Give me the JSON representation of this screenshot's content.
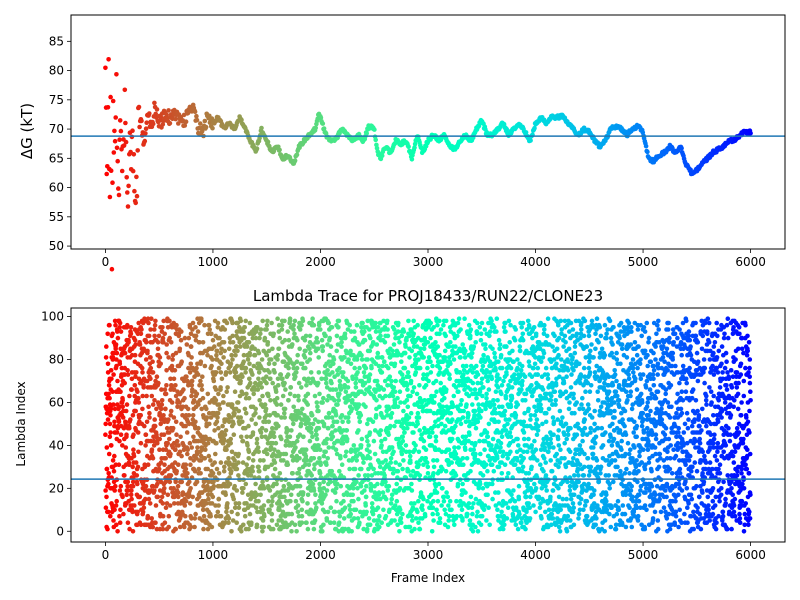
{
  "chart_data": [
    {
      "type": "scatter",
      "title": "",
      "xlabel": "",
      "ylabel": "ΔG (kT)",
      "xlim": [
        -320,
        6320
      ],
      "ylim": [
        49.5,
        89.5
      ],
      "xticks": [
        "0",
        "1000",
        "2000",
        "3000",
        "4000",
        "5000",
        "6000"
      ],
      "yticks": [
        "50",
        "55",
        "60",
        "65",
        "70",
        "75",
        "80",
        "85"
      ],
      "grid": false,
      "hline": 68.8,
      "hline_color": "#1f77b4",
      "colormap": "rainbow",
      "color_range": [
        0,
        6000
      ],
      "colormap_reversed": true,
      "trace": [
        [
          0,
          80
        ],
        [
          10,
          60
        ],
        [
          20,
          64
        ],
        [
          30,
          83
        ],
        [
          40,
          56
        ],
        [
          50,
          78
        ],
        [
          60,
          51
        ],
        [
          70,
          68
        ],
        [
          80,
          72
        ],
        [
          90,
          66
        ],
        [
          100,
          75
        ],
        [
          120,
          62
        ],
        [
          140,
          70
        ],
        [
          160,
          60
        ],
        [
          180,
          76
        ],
        [
          200,
          66
        ],
        [
          220,
          58
        ],
        [
          240,
          69
        ],
        [
          260,
          63
        ],
        [
          280,
          54
        ],
        [
          300,
          67
        ],
        [
          330,
          71
        ],
        [
          360,
          68
        ],
        [
          400,
          73
        ],
        [
          430,
          70
        ],
        [
          460,
          74
        ],
        [
          500,
          71
        ],
        [
          550,
          72
        ],
        [
          600,
          72
        ],
        [
          650,
          73
        ],
        [
          700,
          71
        ],
        [
          750,
          72
        ],
        [
          800,
          74
        ],
        [
          850,
          71
        ],
        [
          900,
          69
        ],
        [
          950,
          72
        ],
        [
          1000,
          71
        ],
        [
          1050,
          72
        ],
        [
          1100,
          70
        ],
        [
          1150,
          71
        ],
        [
          1200,
          70
        ],
        [
          1250,
          72
        ],
        [
          1300,
          70
        ],
        [
          1350,
          68
        ],
        [
          1400,
          66
        ],
        [
          1450,
          70
        ],
        [
          1500,
          68
        ],
        [
          1550,
          66
        ],
        [
          1600,
          67
        ],
        [
          1650,
          65
        ],
        [
          1700,
          65.5
        ],
        [
          1750,
          64
        ],
        [
          1800,
          67
        ],
        [
          1850,
          68
        ],
        [
          1900,
          69
        ],
        [
          1950,
          70
        ],
        [
          1980,
          72.5
        ],
        [
          2000,
          72
        ],
        [
          2050,
          69
        ],
        [
          2100,
          68
        ],
        [
          2150,
          68.5
        ],
        [
          2200,
          70
        ],
        [
          2250,
          69
        ],
        [
          2300,
          68
        ],
        [
          2350,
          69
        ],
        [
          2400,
          68
        ],
        [
          2450,
          70.5
        ],
        [
          2500,
          70
        ],
        [
          2530,
          66
        ],
        [
          2560,
          65
        ],
        [
          2600,
          67
        ],
        [
          2650,
          66
        ],
        [
          2700,
          68
        ],
        [
          2750,
          67.5
        ],
        [
          2800,
          68
        ],
        [
          2850,
          65
        ],
        [
          2900,
          69
        ],
        [
          2950,
          66
        ],
        [
          3000,
          68
        ],
        [
          3050,
          69
        ],
        [
          3100,
          68
        ],
        [
          3150,
          69
        ],
        [
          3200,
          67
        ],
        [
          3250,
          66.5
        ],
        [
          3300,
          68
        ],
        [
          3350,
          69
        ],
        [
          3400,
          68
        ],
        [
          3450,
          70
        ],
        [
          3500,
          71.5
        ],
        [
          3550,
          69
        ],
        [
          3600,
          69
        ],
        [
          3650,
          70
        ],
        [
          3700,
          71
        ],
        [
          3750,
          69
        ],
        [
          3800,
          70
        ],
        [
          3850,
          71
        ],
        [
          3900,
          69.5
        ],
        [
          3950,
          68
        ],
        [
          4000,
          71
        ],
        [
          4050,
          72
        ],
        [
          4100,
          71
        ],
        [
          4150,
          72
        ],
        [
          4200,
          72
        ],
        [
          4250,
          72.3
        ],
        [
          4300,
          71
        ],
        [
          4350,
          70
        ],
        [
          4400,
          69
        ],
        [
          4450,
          70
        ],
        [
          4500,
          69.5
        ],
        [
          4550,
          68
        ],
        [
          4600,
          67
        ],
        [
          4650,
          68
        ],
        [
          4700,
          70
        ],
        [
          4750,
          70.5
        ],
        [
          4800,
          70
        ],
        [
          4850,
          69
        ],
        [
          4900,
          70
        ],
        [
          4950,
          70.5
        ],
        [
          5000,
          69.5
        ],
        [
          5050,
          65
        ],
        [
          5100,
          64.5
        ],
        [
          5150,
          65.5
        ],
        [
          5200,
          66
        ],
        [
          5250,
          67
        ],
        [
          5300,
          66
        ],
        [
          5350,
          67
        ],
        [
          5400,
          64
        ],
        [
          5450,
          62.5
        ],
        [
          5500,
          63
        ],
        [
          5550,
          64
        ],
        [
          5600,
          65
        ],
        [
          5650,
          66
        ],
        [
          5700,
          66.5
        ],
        [
          5750,
          67
        ],
        [
          5800,
          68
        ],
        [
          5850,
          68
        ],
        [
          5900,
          69
        ],
        [
          5950,
          69.5
        ],
        [
          6000,
          69.5
        ]
      ]
    },
    {
      "type": "scatter",
      "title": "Lambda Trace for PROJ18433/RUN22/CLONE23",
      "xlabel": "Frame Index",
      "ylabel": "Lambda Index",
      "xlim": [
        -320,
        6320
      ],
      "ylim": [
        -5,
        104
      ],
      "xticks": [
        "0",
        "1000",
        "2000",
        "3000",
        "4000",
        "5000",
        "6000"
      ],
      "yticks": [
        "0",
        "20",
        "40",
        "60",
        "80",
        "100"
      ],
      "grid": false,
      "hline": 24.3,
      "hline_color": "#1f77b4",
      "colormap": "rainbow",
      "color_range": [
        0,
        6000
      ],
      "colormap_reversed": true,
      "x_range": [
        0,
        6000
      ],
      "y_range": [
        0,
        99
      ],
      "sample_count": 6000
    }
  ]
}
